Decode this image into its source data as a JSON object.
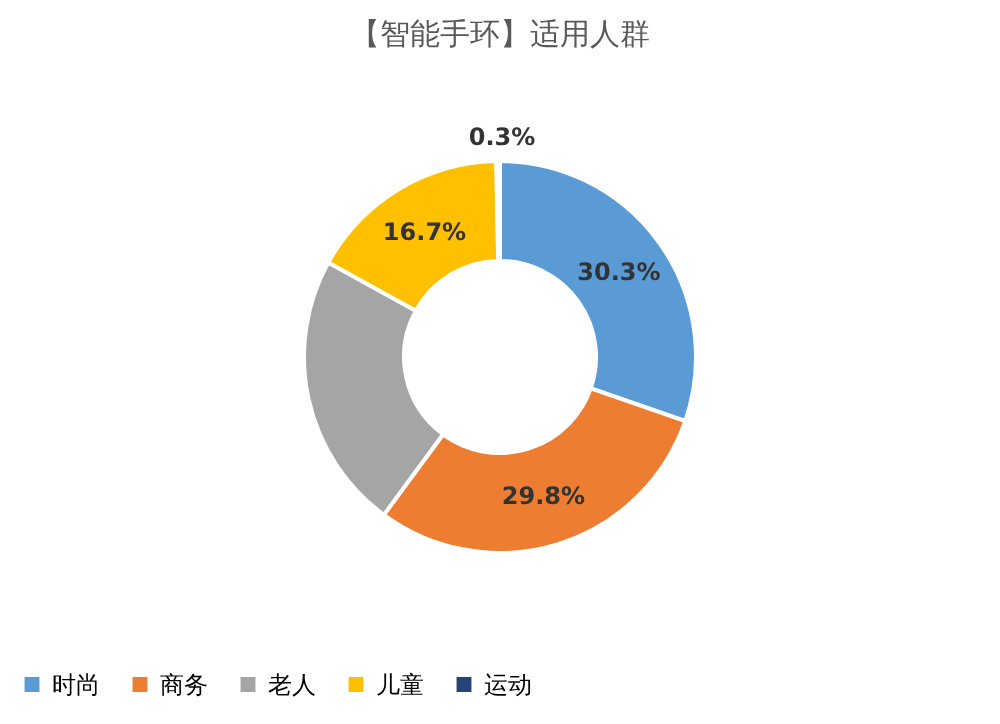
{
  "chart_data": {
    "type": "donut",
    "title": "【智能手环】适用人群",
    "categories": [
      "时尚",
      "商务",
      "老人",
      "儿童",
      "运动"
    ],
    "values": [
      30.3,
      29.8,
      22.9,
      16.7,
      0.3
    ],
    "colors": [
      "#5b9bd5",
      "#ed7d31",
      "#a5a5a5",
      "#ffc000",
      "#264478"
    ],
    "value_labels": [
      "30.3%",
      "29.8%",
      null,
      "16.7%",
      "0.3%"
    ],
    "legend": "bottom"
  }
}
